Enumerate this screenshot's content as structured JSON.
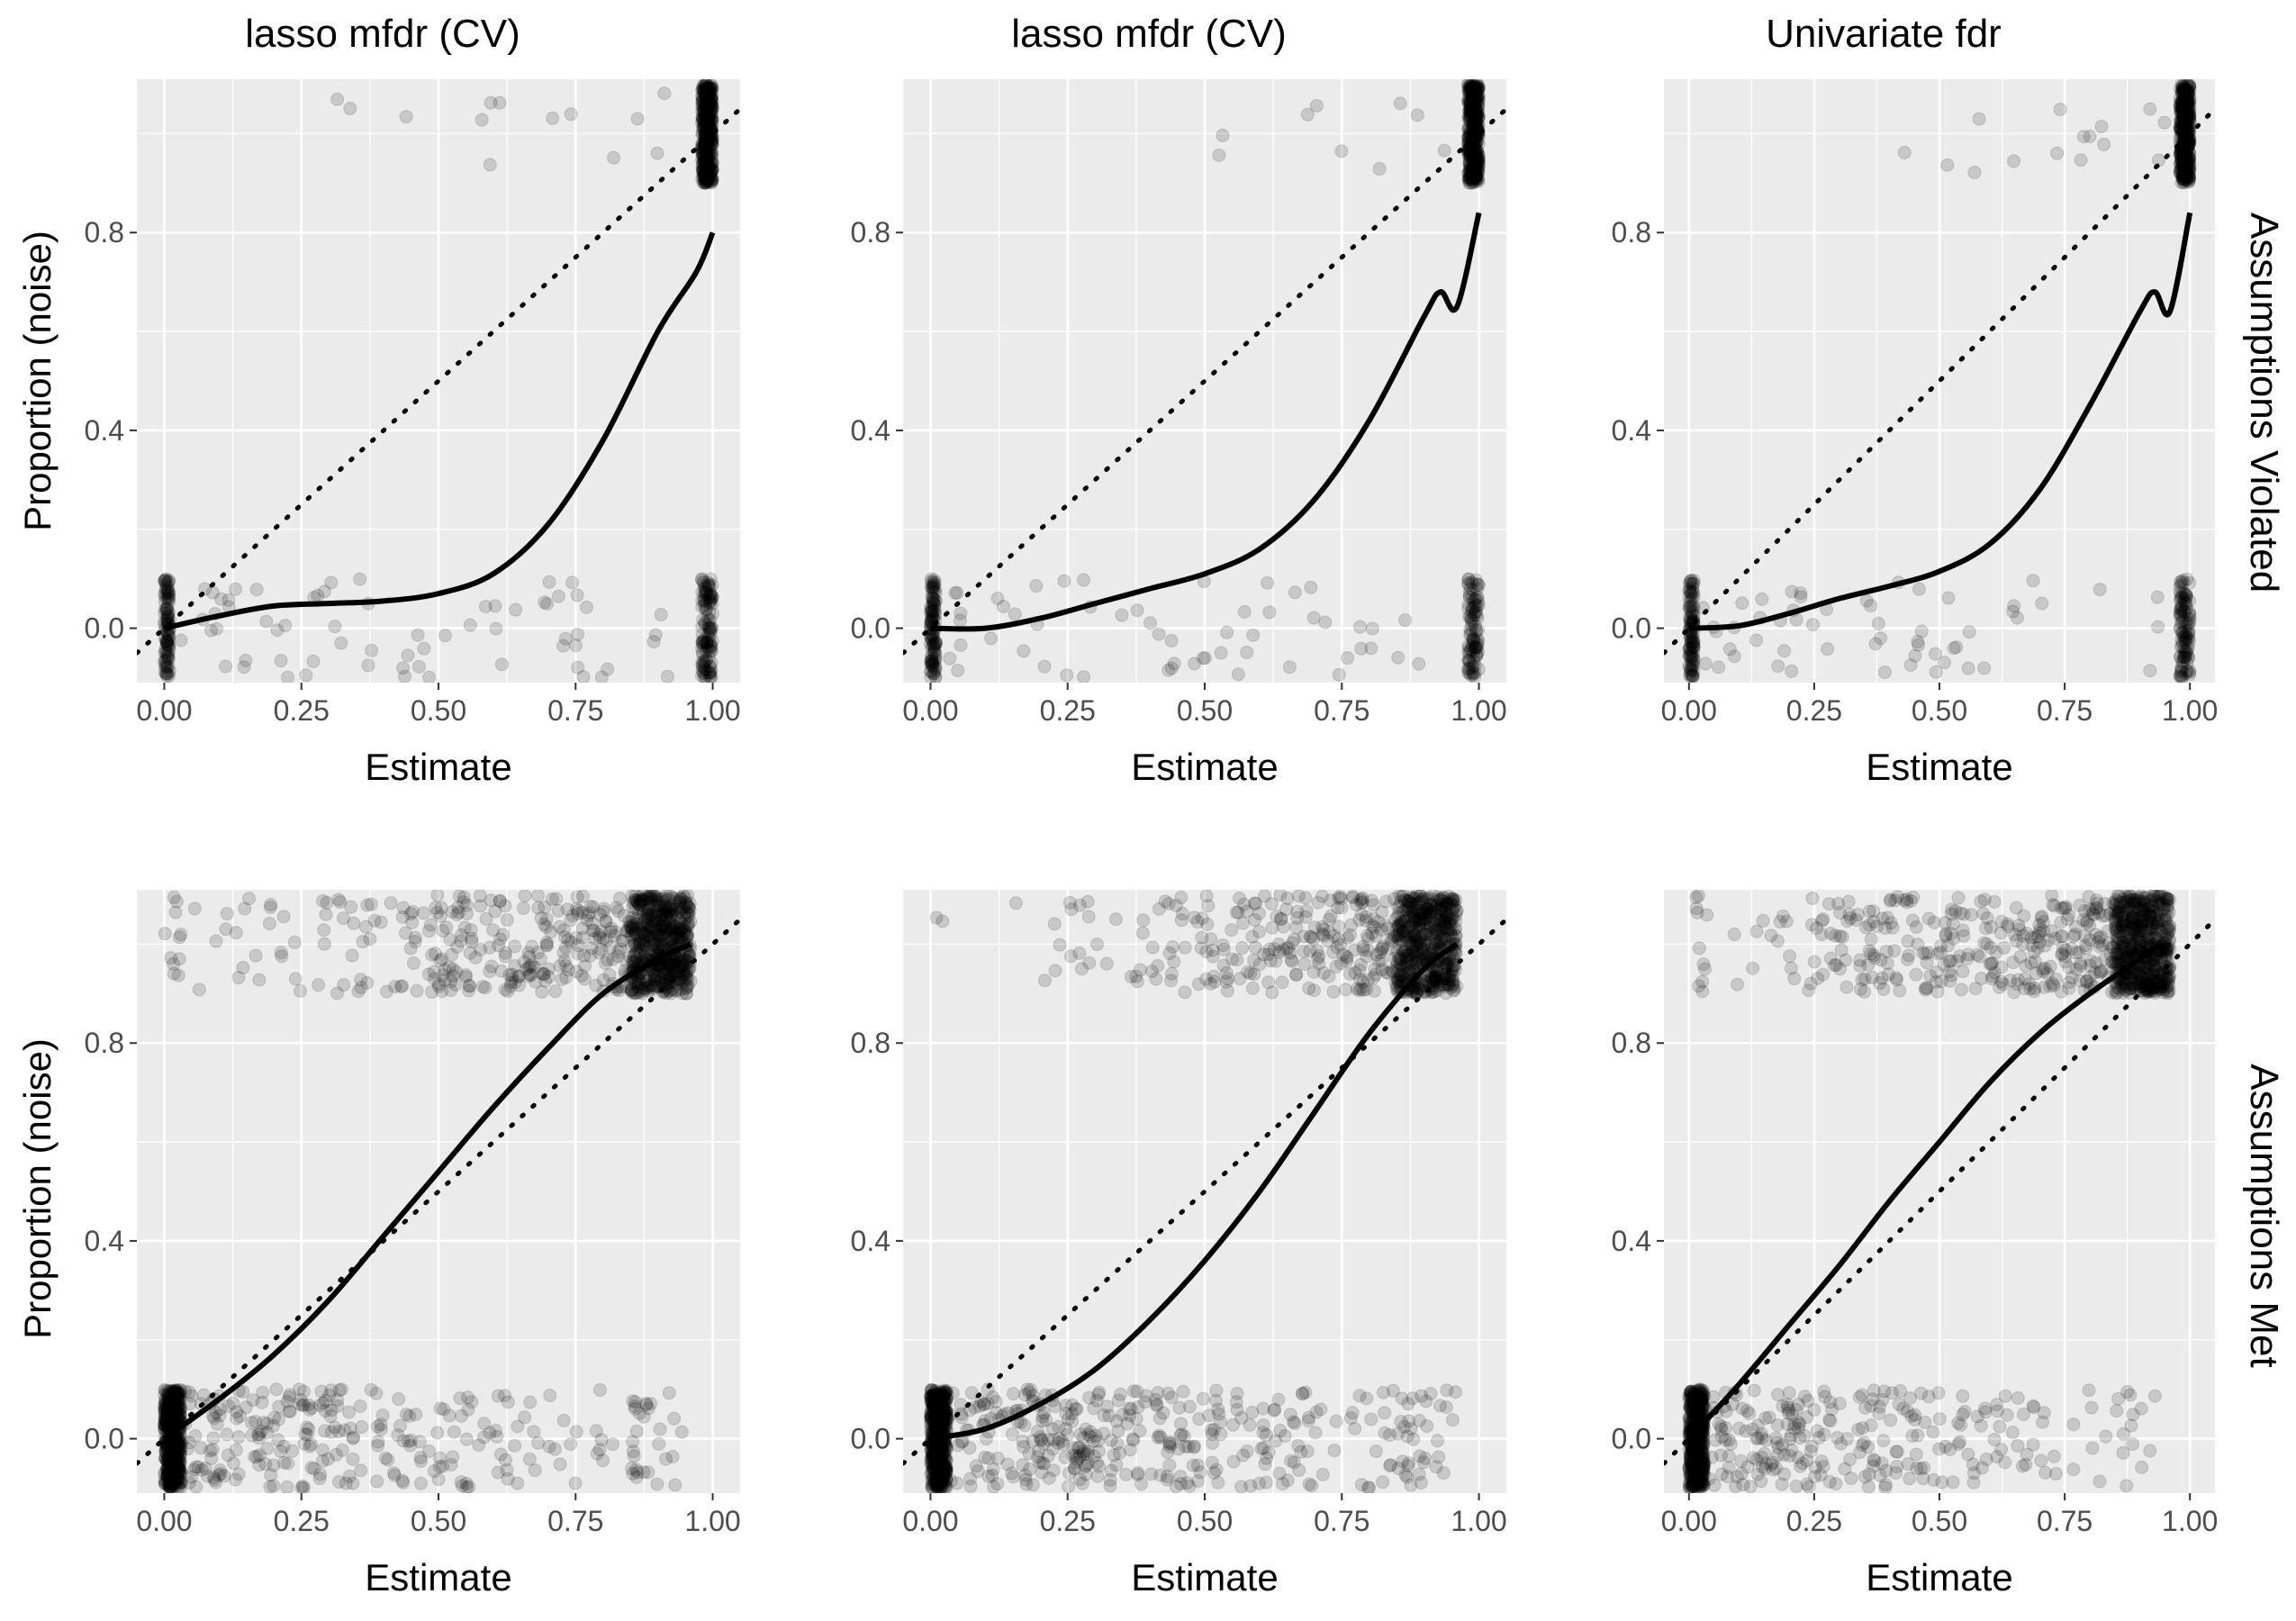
{
  "chart_data": {
    "type": "scatter",
    "layout": "facet-grid-2x3",
    "column_titles": [
      "lasso mfdr (CV)",
      "lasso mfdr (CV)",
      "Univariate fdr"
    ],
    "row_strips": [
      "Assumptions Violated",
      "Assumptions Met"
    ],
    "xlabel": "Estimate",
    "ylabel": "Proportion (noise)",
    "x_ticks": [
      "0.00",
      "0.25",
      "0.50",
      "0.75",
      "1.00"
    ],
    "y_ticks": [
      "0.0",
      "0.4",
      "0.8"
    ],
    "xlim": [
      -0.05,
      1.05
    ],
    "ylim": [
      -0.11,
      1.11
    ],
    "grid": true,
    "background": "#ebebeb",
    "grid_color": "#ffffff",
    "point_color": "#000000",
    "point_alpha": 0.15,
    "points_note": "jittered 0/1 outcomes vs estimate; dense clusters near estimate 0 and 1",
    "reference_line": {
      "style": "dotted",
      "slope": 1,
      "intercept": 0
    },
    "panels": [
      {
        "row": "Assumptions Violated",
        "col": "lasso mfdr (CV)",
        "smooth": {
          "x": [
            0,
            0.1,
            0.2,
            0.3,
            0.4,
            0.5,
            0.6,
            0.7,
            0.8,
            0.9,
            0.97,
            1.0
          ],
          "y": [
            0,
            0.025,
            0.045,
            0.05,
            0.055,
            0.07,
            0.11,
            0.21,
            0.38,
            0.6,
            0.72,
            0.8
          ]
        }
      },
      {
        "row": "Assumptions Violated",
        "col": "lasso mfdr (CV)",
        "smooth": {
          "x": [
            0,
            0.1,
            0.2,
            0.3,
            0.4,
            0.5,
            0.6,
            0.7,
            0.8,
            0.9,
            0.93,
            0.96,
            1.0
          ],
          "y": [
            0,
            0,
            0.02,
            0.05,
            0.08,
            0.11,
            0.16,
            0.26,
            0.42,
            0.63,
            0.68,
            0.65,
            0.84
          ]
        }
      },
      {
        "row": "Assumptions Violated",
        "col": "Univariate fdr",
        "smooth": {
          "x": [
            0,
            0.1,
            0.2,
            0.3,
            0.4,
            0.5,
            0.6,
            0.7,
            0.8,
            0.9,
            0.93,
            0.96,
            1.0
          ],
          "y": [
            0,
            0.005,
            0.03,
            0.06,
            0.085,
            0.115,
            0.17,
            0.28,
            0.45,
            0.64,
            0.68,
            0.64,
            0.84
          ]
        }
      },
      {
        "row": "Assumptions Met",
        "col": "lasso mfdr (CV)",
        "smooth": {
          "x": [
            0,
            0.1,
            0.2,
            0.3,
            0.4,
            0.5,
            0.6,
            0.7,
            0.8,
            0.9,
            0.96
          ],
          "y": [
            0,
            0.08,
            0.17,
            0.28,
            0.41,
            0.54,
            0.67,
            0.79,
            0.9,
            0.97,
            1.0
          ]
        }
      },
      {
        "row": "Assumptions Met",
        "col": "lasso mfdr (CV)",
        "smooth": {
          "x": [
            0,
            0.1,
            0.2,
            0.3,
            0.4,
            0.5,
            0.6,
            0.7,
            0.8,
            0.9,
            0.96
          ],
          "y": [
            0,
            0.02,
            0.07,
            0.14,
            0.24,
            0.36,
            0.5,
            0.66,
            0.82,
            0.95,
            1.0
          ]
        }
      },
      {
        "row": "Assumptions Met",
        "col": "Univariate fdr",
        "smooth": {
          "x": [
            0,
            0.1,
            0.2,
            0.3,
            0.4,
            0.5,
            0.6,
            0.7,
            0.8,
            0.9,
            0.94
          ],
          "y": [
            0,
            0.11,
            0.23,
            0.35,
            0.48,
            0.6,
            0.72,
            0.82,
            0.9,
            0.97,
            1.0
          ]
        }
      }
    ]
  }
}
